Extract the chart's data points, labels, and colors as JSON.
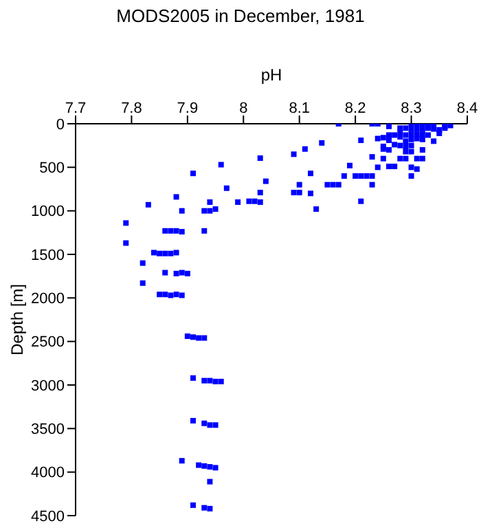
{
  "chart_data": {
    "type": "scatter",
    "title": "MODS2005 in December, 1981",
    "xlabel": "pH",
    "ylabel": "Depth [m]",
    "xlim": [
      7.7,
      8.4
    ],
    "xticks": [
      7.7,
      7.8,
      7.9,
      8,
      8.1,
      8.2,
      8.3,
      8.4
    ],
    "ylim": [
      4500,
      0
    ],
    "yticks": [
      0,
      500,
      1000,
      1500,
      2000,
      2500,
      3000,
      3500,
      4000,
      4500
    ],
    "grid": false,
    "legend": false,
    "marker": "square",
    "series": [
      {
        "color": "#0000ff",
        "x": [
          7.9,
          7.91,
          7.92,
          7.93,
          7.91,
          7.93,
          7.94,
          7.95,
          7.96,
          7.91,
          7.93,
          7.94,
          7.95,
          7.89,
          7.92,
          7.93,
          7.94,
          7.95,
          7.94,
          7.91,
          7.93,
          7.94,
          7.91,
          7.96,
          7.88,
          7.97,
          7.83,
          7.89,
          7.93,
          7.94,
          7.95,
          7.94,
          7.99,
          8.01,
          8.02,
          8.03,
          8.03,
          8.03,
          7.79,
          7.79,
          7.86,
          7.87,
          7.88,
          7.89,
          7.93,
          7.82,
          7.82,
          7.84,
          7.85,
          7.86,
          7.87,
          7.88,
          7.86,
          7.88,
          7.89,
          7.9,
          7.85,
          7.86,
          7.87,
          7.88,
          7.89,
          8.17,
          8.23,
          8.24,
          8.14,
          8.11,
          8.09,
          8.21,
          8.23,
          8.19,
          8.12,
          8.04,
          8.1,
          8.15,
          8.16,
          8.17,
          8.2,
          8.21,
          8.22,
          8.23,
          8.23,
          8.18,
          8.09,
          8.1,
          8.12,
          8.13,
          8.21,
          8.24,
          8.25,
          8.25,
          8.25,
          8.26,
          8.26,
          8.26,
          8.26,
          8.27,
          8.27,
          8.24,
          8.25,
          8.26,
          8.27,
          8.28,
          8.28,
          8.28,
          8.28,
          8.29,
          8.29,
          8.29,
          8.29,
          8.29,
          8.3,
          8.3,
          8.3,
          8.3,
          8.3,
          8.3,
          8.28,
          8.29,
          8.3,
          8.3,
          8.31,
          8.31,
          8.31,
          8.31,
          8.31,
          8.32,
          8.31,
          8.32,
          8.32,
          8.32,
          8.32,
          8.32,
          8.33,
          8.33,
          8.33,
          8.34,
          8.34,
          8.34,
          8.35,
          8.35,
          8.36,
          8.36,
          8.36,
          8.37
        ],
        "values": [
          2440,
          2450,
          2460,
          2460,
          2920,
          2950,
          2950,
          2960,
          2960,
          3410,
          3440,
          3460,
          3460,
          3870,
          3920,
          3930,
          3940,
          3950,
          4110,
          4380,
          4410,
          4420,
          570,
          470,
          840,
          740,
          930,
          1000,
          1000,
          1000,
          980,
          900,
          900,
          890,
          890,
          900,
          790,
          395,
          1140,
          1370,
          1230,
          1230,
          1230,
          1240,
          1230,
          1600,
          1830,
          1480,
          1490,
          1490,
          1490,
          1480,
          1710,
          1720,
          1710,
          1720,
          1960,
          1960,
          1970,
          1960,
          1970,
          0,
          0,
          0,
          220,
          290,
          350,
          190,
          380,
          480,
          570,
          660,
          700,
          700,
          700,
          700,
          600,
          600,
          600,
          600,
          700,
          600,
          790,
          790,
          800,
          980,
          890,
          170,
          160,
          260,
          290,
          30,
          130,
          190,
          300,
          130,
          240,
          500,
          400,
          490,
          490,
          50,
          100,
          150,
          250,
          50,
          130,
          200,
          260,
          320,
          0,
          60,
          120,
          180,
          250,
          320,
          400,
          400,
          500,
          600,
          0,
          60,
          120,
          170,
          400,
          400,
          520,
          0,
          60,
          120,
          180,
          300,
          0,
          50,
          130,
          0,
          60,
          200,
          70,
          110,
          0,
          50,
          30,
          20
        ]
      }
    ]
  }
}
